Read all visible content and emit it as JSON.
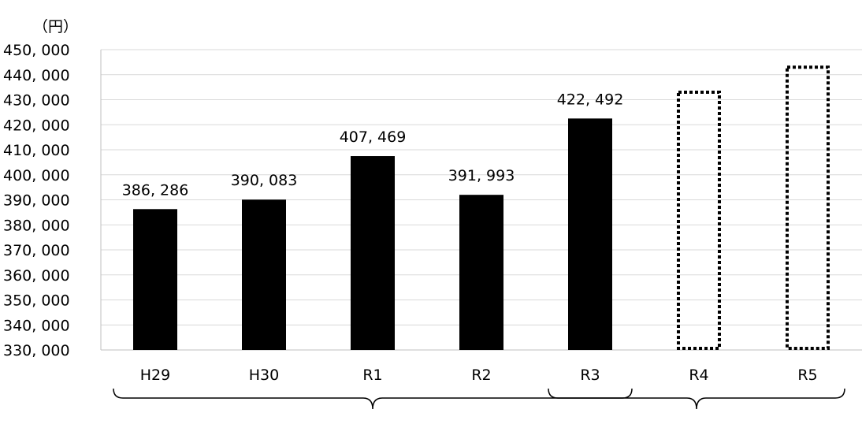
{
  "chart_data": {
    "type": "bar",
    "unit": "（円）",
    "categories": [
      "H29",
      "H30",
      "R1",
      "R2",
      "R3",
      "R4",
      "R5"
    ],
    "values": [
      386286,
      390083,
      407469,
      391993,
      422492,
      null,
      null
    ],
    "data_labels": [
      "386, 286",
      "390, 083",
      "407, 469",
      "391, 993",
      "422, 492",
      "",
      ""
    ],
    "placeholders": [
      {
        "category": "R4",
        "value": 433000
      },
      {
        "category": "R5",
        "value": 443000
      }
    ],
    "ylim": [
      330000,
      450000
    ],
    "yticks": [
      330000,
      340000,
      350000,
      360000,
      370000,
      380000,
      390000,
      400000,
      410000,
      420000,
      430000,
      440000,
      450000
    ],
    "ytick_labels": [
      "330, 000",
      "340, 000",
      "350, 000",
      "360, 000",
      "370, 000",
      "380, 000",
      "390, 000",
      "400, 000",
      "410, 000",
      "420, 000",
      "430, 000",
      "440, 000",
      "450, 000"
    ],
    "grid": true,
    "bar_color": "#000000",
    "grid_color": "#d9d9d9",
    "brackets": [
      {
        "from": "H29",
        "to": "R3"
      },
      {
        "from": "R3",
        "to": "R5"
      }
    ]
  }
}
